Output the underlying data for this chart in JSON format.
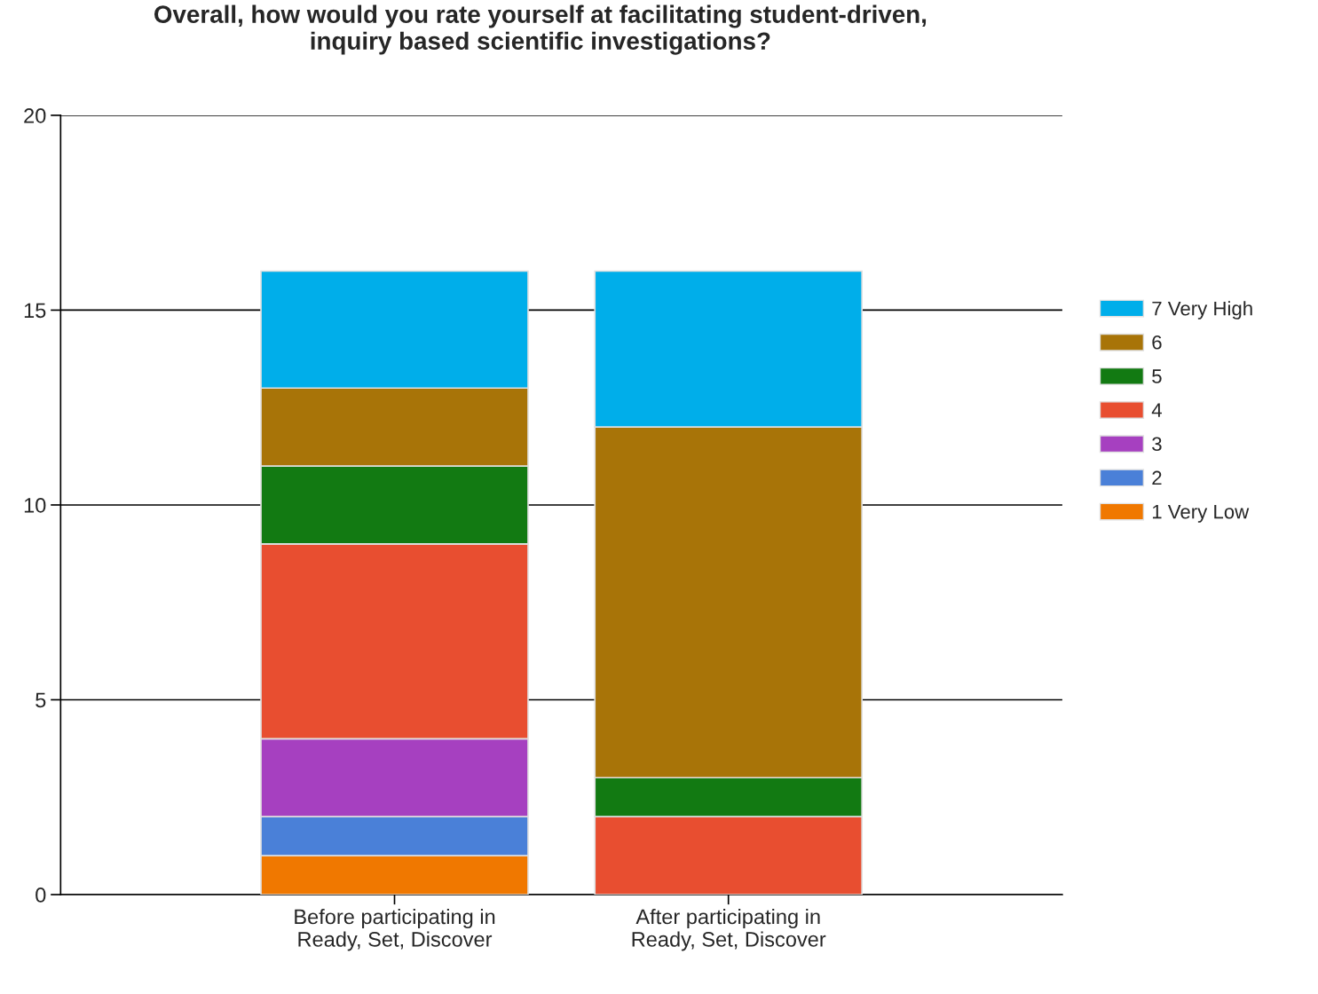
{
  "chart_data": {
    "type": "bar",
    "title": "Overall, how would you rate yourself at facilitating student-driven,\ninquiry based scientific investigations?",
    "categories": [
      "Before participating in\nReady, Set, Discover",
      "After participating in\nReady, Set, Discover"
    ],
    "stacked": true,
    "series": [
      {
        "name": "1 Very Low",
        "color": "#f07800",
        "values": [
          1,
          0
        ]
      },
      {
        "name": "2",
        "color": "#4a80d8",
        "values": [
          1,
          0
        ]
      },
      {
        "name": "3",
        "color": "#a640c0",
        "values": [
          2,
          0
        ]
      },
      {
        "name": "4",
        "color": "#e84e30",
        "values": [
          5,
          2
        ]
      },
      {
        "name": "5",
        "color": "#127a12",
        "values": [
          2,
          1
        ]
      },
      {
        "name": "6",
        "color": "#a87408",
        "values": [
          2,
          9
        ]
      },
      {
        "name": "7 Very High",
        "color": "#00aeea",
        "values": [
          3,
          4
        ]
      }
    ],
    "ylim": [
      0,
      20
    ],
    "yticks": [
      0,
      5,
      10,
      15,
      20
    ],
    "grid": "y",
    "legend": "right"
  }
}
